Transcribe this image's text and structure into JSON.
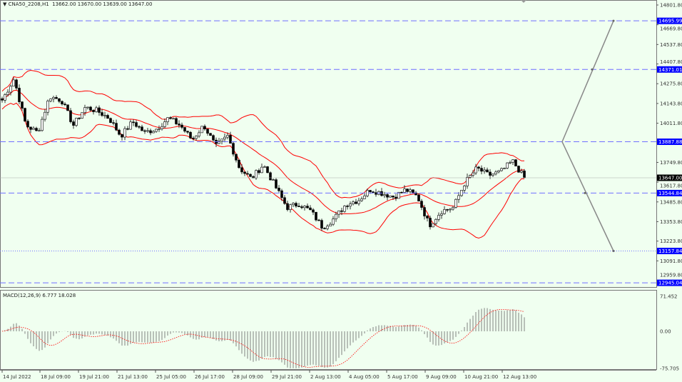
{
  "header": {
    "symbol": "CNA50_2208,H1",
    "ohlc": "13662.00 13670.00 13639.00 13647.00"
  },
  "macd_header": "MACD(12,26,9) 6.777 18.028",
  "chart_data": {
    "type": "candlestick",
    "symbol": "CNA50_2208",
    "timeframe": "H1",
    "ylim": [
      12959.8,
      14801.8
    ],
    "price_ticks": [
      "14801.80",
      "14669.80",
      "14537.80",
      "14407.80",
      "14275.80",
      "14143.80",
      "14011.80",
      "13749.80",
      "13617.80",
      "13485.80",
      "13353.80",
      "13223.80",
      "13091.80",
      "12959.80"
    ],
    "x_ticks": [
      "14 Jul 2022",
      "18 Jul 09:00",
      "19 Jul 21:00",
      "21 Jul 13:00",
      "25 Jul 05:00",
      "26 Jul 17:00",
      "28 Jul 09:00",
      "29 Jul 21:00",
      "2 Aug 13:00",
      "4 Aug 05:00",
      "5 Aug 17:00",
      "9 Aug 09:00",
      "10 Aug 21:00",
      "12 Aug 13:00"
    ],
    "approx_close_path": [
      14166,
      14309,
      13998,
      13950,
      14190,
      14166,
      13998,
      14118,
      14094,
      14046,
      13926,
      14022,
      13950,
      13974,
      14046,
      13998,
      13902,
      13998,
      13855,
      13926,
      13711,
      13640,
      13735,
      13592,
      13448,
      13473,
      13425,
      13315,
      13377,
      13473,
      13496,
      13568,
      13544,
      13520,
      13568,
      13520,
      13329,
      13425,
      13448,
      13616,
      13711,
      13664,
      13687,
      13759,
      13647
    ],
    "current_price": "13647.00",
    "levels": [
      {
        "value": "14695.99",
        "style": "dashed"
      },
      {
        "value": "14371.01",
        "style": "dashed"
      },
      {
        "value": "13887.88",
        "style": "dashed"
      },
      {
        "value": "13544.84",
        "style": "dashed"
      },
      {
        "value": "13157.84",
        "style": "dotted"
      },
      {
        "value": "12945.04",
        "style": "dashed"
      }
    ],
    "indicators": {
      "bollinger": {
        "color": "#ff0000"
      },
      "macd": {
        "params": "12,26,9",
        "value": 6.777,
        "signal": 18.028,
        "ylim": [
          -75.705,
          71.452
        ],
        "ticks": [
          "71.452",
          "0.00",
          "-75.705"
        ],
        "hist_color": "#808080",
        "signal_color": "#ff0000"
      }
    },
    "colors": {
      "background": "#f0fff0",
      "level_line": "#6f6fff",
      "label_bg": "#0000ff",
      "candle": "#000000"
    }
  }
}
